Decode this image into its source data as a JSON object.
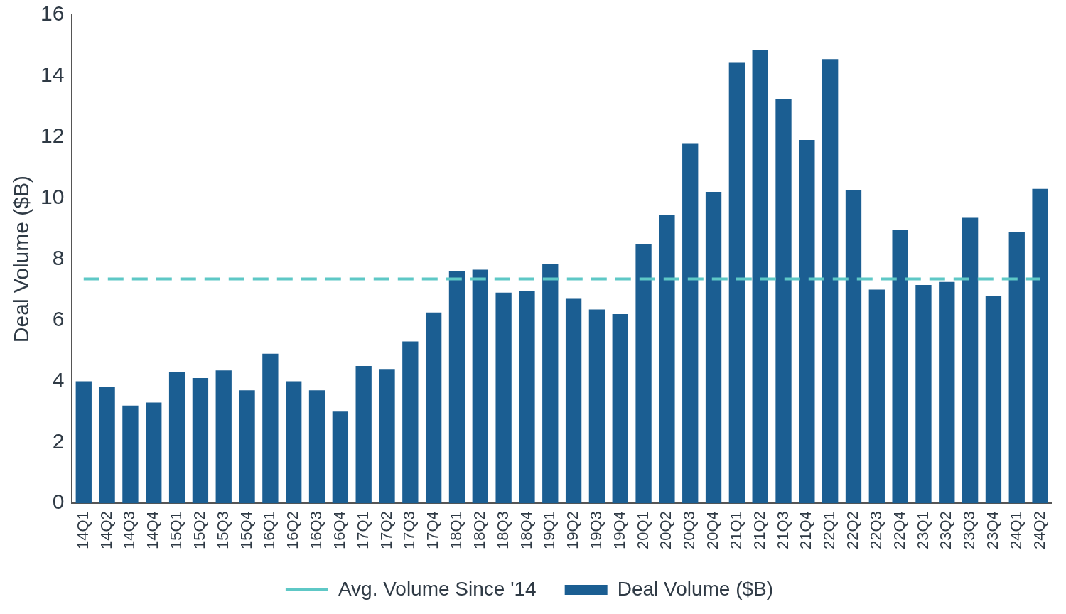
{
  "chart_data": {
    "type": "bar",
    "y_label": "Deal Volume ($B)",
    "categories": [
      "14Q1",
      "14Q2",
      "14Q3",
      "14Q4",
      "15Q1",
      "15Q2",
      "15Q3",
      "15Q4",
      "16Q1",
      "16Q2",
      "16Q3",
      "16Q4",
      "17Q1",
      "17Q2",
      "17Q3",
      "17Q4",
      "18Q1",
      "18Q2",
      "18Q3",
      "18Q4",
      "19Q1",
      "19Q2",
      "19Q3",
      "19Q4",
      "20Q1",
      "20Q2",
      "20Q3",
      "20Q4",
      "21Q1",
      "21Q2",
      "21Q3",
      "21Q4",
      "22Q1",
      "22Q2",
      "22Q3",
      "22Q4",
      "23Q1",
      "23Q2",
      "23Q3",
      "23Q4",
      "24Q1",
      "24Q2"
    ],
    "series": [
      {
        "name": "Deal Volume ($B)",
        "type": "bar",
        "color": "#1b5e92",
        "values": [
          4.0,
          3.8,
          3.2,
          3.3,
          4.3,
          4.1,
          4.35,
          3.7,
          4.9,
          4.0,
          3.7,
          3.0,
          4.5,
          4.4,
          5.3,
          6.25,
          7.6,
          7.65,
          6.9,
          6.95,
          7.85,
          6.7,
          6.35,
          6.2,
          8.5,
          9.45,
          11.8,
          10.2,
          14.45,
          14.85,
          13.25,
          11.9,
          14.55,
          10.25,
          7.0,
          8.95,
          7.15,
          7.25,
          9.35,
          6.8,
          8.9,
          10.3
        ]
      },
      {
        "name": "Avg. Volume Since '14",
        "type": "line",
        "color": "#5ec8c6",
        "line_style": "dashed",
        "values": [
          7.35,
          7.35,
          7.35,
          7.35,
          7.35,
          7.35,
          7.35,
          7.35,
          7.35,
          7.35,
          7.35,
          7.35,
          7.35,
          7.35,
          7.35,
          7.35,
          7.35,
          7.35,
          7.35,
          7.35,
          7.35,
          7.35,
          7.35,
          7.35,
          7.35,
          7.35,
          7.35,
          7.35,
          7.35,
          7.35,
          7.35,
          7.35,
          7.35,
          7.35,
          7.35,
          7.35,
          7.35,
          7.35,
          7.35,
          7.35,
          7.35,
          7.35
        ]
      }
    ],
    "ylim": [
      0,
      16
    ],
    "yticks": [
      0,
      2,
      4,
      6,
      8,
      10,
      12,
      14,
      16
    ],
    "grid": false,
    "legend": "bottom"
  }
}
